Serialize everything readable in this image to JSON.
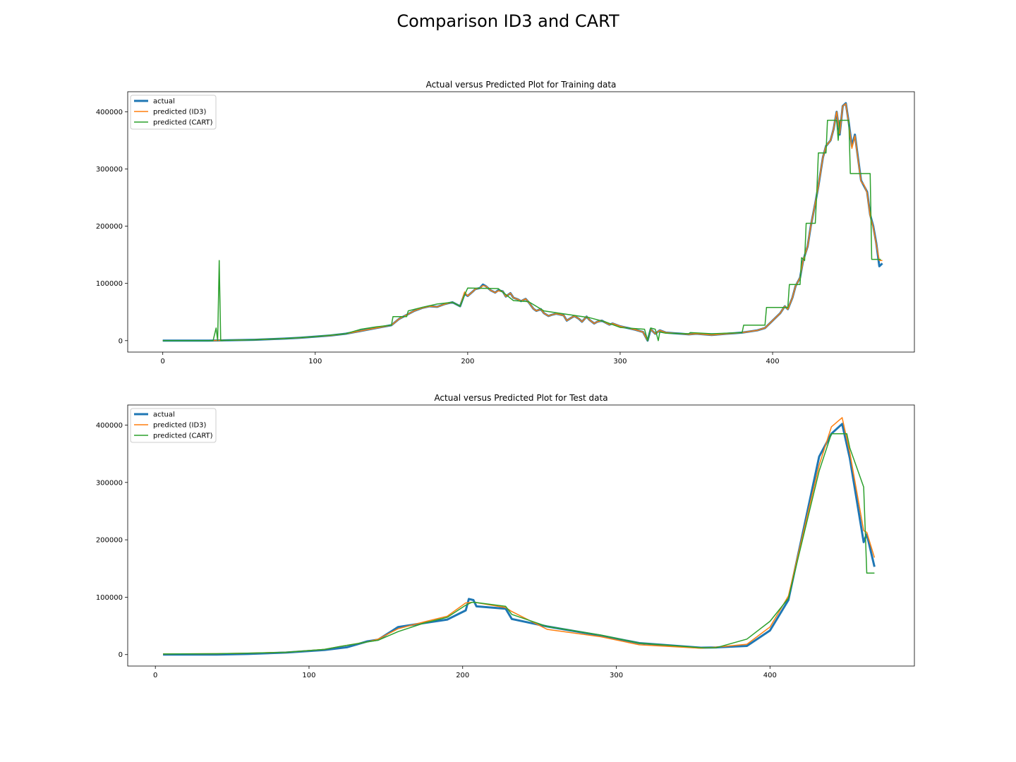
{
  "figure": {
    "title": "Comparison ID3 and CART"
  },
  "colors": {
    "actual": "#1f77b4",
    "id3": "#ff7f0e",
    "cart": "#2ca02c"
  },
  "chart_data": [
    {
      "type": "line",
      "title": "Actual versus Predicted Plot for Training data",
      "xlabel": "",
      "ylabel": "",
      "xlim": [
        -23,
        493
      ],
      "ylim": [
        -20000,
        435000
      ],
      "xticks": [
        0,
        100,
        200,
        300,
        400
      ],
      "yticks": [
        0,
        100000,
        200000,
        300000,
        400000
      ],
      "legend_position": "top-left",
      "grid": false,
      "series": [
        {
          "name": "actual",
          "key": "actual",
          "x": [
            0,
            20,
            30,
            40,
            50,
            60,
            70,
            80,
            90,
            100,
            110,
            120,
            130,
            140,
            150,
            155,
            160,
            165,
            170,
            175,
            180,
            185,
            190,
            195,
            198,
            200,
            203,
            205,
            208,
            210,
            212,
            215,
            218,
            220,
            223,
            225,
            228,
            230,
            233,
            235,
            238,
            240,
            243,
            245,
            248,
            250,
            253,
            255,
            258,
            260,
            263,
            265,
            268,
            270,
            273,
            275,
            278,
            280,
            283,
            285,
            288,
            290,
            293,
            295,
            300,
            305,
            310,
            315,
            318,
            320,
            323,
            326,
            330,
            335,
            340,
            345,
            350,
            355,
            360,
            365,
            370,
            375,
            380,
            385,
            390,
            395,
            400,
            405,
            408,
            410,
            413,
            415,
            418,
            420,
            423,
            425,
            428,
            430,
            433,
            435,
            438,
            440,
            442,
            444,
            446,
            448,
            450,
            452,
            454,
            456,
            458,
            460,
            462,
            464,
            466,
            468,
            470,
            472
          ],
          "y": [
            0,
            0,
            0,
            500,
            1000,
            1500,
            2500,
            3500,
            5000,
            7000,
            9000,
            12000,
            17000,
            22000,
            27000,
            38000,
            45000,
            52000,
            57000,
            60000,
            59000,
            64000,
            67000,
            60000,
            82000,
            78000,
            85000,
            90000,
            92000,
            98000,
            95000,
            88000,
            84000,
            88000,
            86000,
            77000,
            83000,
            75000,
            72000,
            69000,
            73000,
            67000,
            56000,
            52000,
            55000,
            48000,
            43000,
            45000,
            47000,
            46000,
            44000,
            35000,
            40000,
            43000,
            38000,
            33000,
            42000,
            36000,
            30000,
            33000,
            35000,
            32000,
            28000,
            30000,
            25000,
            22000,
            19000,
            15000,
            0,
            20000,
            12000,
            18000,
            14000,
            13000,
            12000,
            11000,
            12000,
            11000,
            10000,
            11000,
            12000,
            13000,
            14000,
            16000,
            18000,
            22000,
            35000,
            48000,
            60000,
            55000,
            75000,
            95000,
            110000,
            140000,
            165000,
            200000,
            240000,
            270000,
            320000,
            340000,
            350000,
            370000,
            400000,
            360000,
            410000,
            415000,
            380000,
            340000,
            360000,
            320000,
            280000,
            270000,
            260000,
            220000,
            200000,
            170000,
            130000,
            135000
          ]
        },
        {
          "name": "predicted (ID3)",
          "key": "id3",
          "x": [
            0,
            20,
            30,
            40,
            50,
            60,
            70,
            80,
            90,
            100,
            110,
            120,
            130,
            140,
            150,
            155,
            160,
            165,
            170,
            175,
            180,
            185,
            190,
            195,
            198,
            200,
            203,
            205,
            208,
            210,
            212,
            215,
            218,
            220,
            223,
            225,
            228,
            230,
            233,
            235,
            238,
            240,
            243,
            245,
            248,
            250,
            253,
            255,
            258,
            260,
            263,
            265,
            268,
            270,
            273,
            275,
            278,
            280,
            283,
            285,
            288,
            290,
            293,
            295,
            300,
            305,
            310,
            315,
            318,
            320,
            323,
            326,
            330,
            335,
            340,
            345,
            350,
            355,
            360,
            365,
            370,
            375,
            380,
            385,
            390,
            395,
            400,
            405,
            408,
            410,
            413,
            415,
            418,
            420,
            423,
            425,
            428,
            430,
            433,
            435,
            438,
            440,
            442,
            444,
            446,
            448,
            450,
            452,
            454,
            456,
            458,
            460,
            462,
            464,
            466,
            468,
            470,
            472
          ],
          "y": [
            0,
            0,
            0,
            500,
            1000,
            1500,
            2500,
            3500,
            5000,
            7000,
            9000,
            12000,
            17000,
            22000,
            27000,
            38000,
            45000,
            52000,
            57000,
            60000,
            59000,
            64000,
            67000,
            60000,
            85000,
            78000,
            85000,
            90000,
            92000,
            96000,
            95000,
            88000,
            84000,
            87000,
            86000,
            77000,
            83000,
            75000,
            72000,
            69000,
            73000,
            67000,
            56000,
            52000,
            55000,
            48000,
            43000,
            45000,
            47000,
            46000,
            44000,
            35000,
            40000,
            43000,
            38000,
            33000,
            42000,
            36000,
            30000,
            33000,
            35000,
            32000,
            28000,
            30000,
            25000,
            22000,
            19000,
            15000,
            0,
            20000,
            12000,
            18000,
            14000,
            13000,
            12000,
            11000,
            12000,
            11000,
            10000,
            11000,
            12000,
            13000,
            14000,
            16000,
            18000,
            22000,
            35000,
            48000,
            60000,
            55000,
            75000,
            95000,
            110000,
            140000,
            165000,
            200000,
            240000,
            270000,
            320000,
            340000,
            350000,
            370000,
            400000,
            362000,
            410000,
            414000,
            378000,
            336000,
            358000,
            318000,
            278000,
            272000,
            258000,
            218000,
            198000,
            168000,
            140000,
            140000
          ]
        },
        {
          "name": "predicted (CART)",
          "key": "cart",
          "x": [
            0,
            33,
            35,
            36,
            37,
            38,
            39,
            40,
            60,
            80,
            100,
            120,
            130,
            140,
            150,
            151,
            160,
            161,
            170,
            180,
            190,
            195,
            198,
            200,
            220,
            230,
            240,
            250,
            260,
            280,
            290,
            300,
            310,
            316,
            318,
            320,
            323,
            325,
            326,
            330,
            345,
            346,
            360,
            380,
            381,
            395,
            396,
            410,
            411,
            418,
            419,
            421,
            422,
            425,
            428,
            429,
            430,
            432,
            433,
            435,
            436,
            437,
            440,
            442,
            443,
            444,
            445,
            446,
            447,
            448,
            450,
            451,
            456,
            457,
            460,
            461,
            462,
            464,
            465,
            470,
            471
          ],
          "y": [
            0,
            0,
            22000,
            0,
            140000,
            0,
            0,
            500,
            1500,
            3500,
            7000,
            12000,
            20000,
            24000,
            27000,
            42000,
            42000,
            52000,
            58000,
            64000,
            67000,
            60000,
            80000,
            92000,
            91000,
            70000,
            68000,
            52000,
            48000,
            40000,
            33000,
            23000,
            21000,
            20000,
            0,
            22000,
            20000,
            0,
            15000,
            13000,
            12000,
            14000,
            12000,
            14000,
            27000,
            27000,
            58000,
            58000,
            98000,
            98000,
            145000,
            140000,
            205000,
            205000,
            205000,
            260000,
            328000,
            328000,
            328000,
            328000,
            385000,
            385000,
            385000,
            385000,
            350000,
            385000,
            385000,
            385000,
            385000,
            385000,
            385000,
            292000,
            292000,
            292000,
            292000,
            292000,
            292000,
            292000,
            142000,
            142000,
            142000
          ]
        }
      ]
    },
    {
      "type": "line",
      "title": "Actual versus Predicted Plot for Test data",
      "xlabel": "",
      "ylabel": "",
      "xlim": [
        -18,
        494
      ],
      "ylim": [
        -20000,
        435000
      ],
      "xticks": [
        0,
        100,
        200,
        300,
        400
      ],
      "yticks": [
        0,
        100000,
        200000,
        300000,
        400000
      ],
      "legend_position": "top-left",
      "grid": false,
      "series": [
        {
          "name": "actual",
          "key": "actual",
          "x": [
            5,
            40,
            60,
            85,
            110,
            125,
            138,
            145,
            158,
            175,
            190,
            202,
            204,
            207,
            209,
            228,
            232,
            255,
            290,
            315,
            355,
            365,
            385,
            400,
            412,
            432,
            440,
            447,
            452,
            461,
            463,
            468
          ],
          "y": [
            0,
            0,
            1000,
            3500,
            8000,
            13000,
            23000,
            26000,
            48000,
            55000,
            61000,
            77000,
            97000,
            95000,
            84000,
            80000,
            62000,
            49000,
            33000,
            20000,
            12000,
            12500,
            15000,
            42000,
            95000,
            345000,
            385000,
            402000,
            342000,
            196000,
            210000,
            153000
          ]
        },
        {
          "name": "predicted (ID3)",
          "key": "id3",
          "x": [
            5,
            40,
            60,
            85,
            110,
            120,
            138,
            145,
            158,
            175,
            190,
            202,
            206,
            208,
            228,
            232,
            255,
            290,
            315,
            355,
            365,
            385,
            400,
            412,
            432,
            440,
            447,
            452,
            461,
            463,
            468
          ],
          "y": [
            1000,
            1500,
            2500,
            4000,
            9000,
            14000,
            22000,
            27000,
            45000,
            57000,
            67000,
            90000,
            91000,
            91000,
            82000,
            75000,
            44000,
            31000,
            17000,
            11000,
            13000,
            18000,
            48000,
            102000,
            330000,
            397000,
            413000,
            352000,
            216000,
            213000,
            169000
          ]
        },
        {
          "name": "predicted (CART)",
          "key": "cart",
          "x": [
            5,
            40,
            60,
            85,
            110,
            120,
            138,
            145,
            158,
            175,
            190,
            202,
            206,
            208,
            228,
            232,
            255,
            290,
            315,
            355,
            365,
            385,
            400,
            412,
            432,
            440,
            450,
            452,
            461,
            463,
            468
          ],
          "y": [
            1000,
            1500,
            2500,
            4000,
            9000,
            14000,
            22000,
            25000,
            40000,
            55000,
            65000,
            86000,
            91000,
            91000,
            84000,
            70000,
            49000,
            34000,
            20000,
            12000,
            12000,
            27000,
            58000,
            98000,
            320000,
            385000,
            385000,
            360000,
            292000,
            142000,
            142000
          ]
        }
      ]
    }
  ]
}
